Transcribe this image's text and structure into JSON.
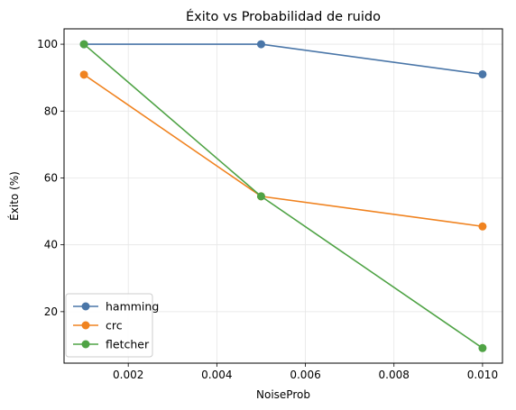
{
  "chart_data": {
    "type": "line",
    "title": "Éxito vs Probabilidad de ruido",
    "xlabel": "NoiseProb",
    "ylabel": "Éxito (%)",
    "x": [
      0.001,
      0.005,
      0.01
    ],
    "xlim": [
      0.00055,
      0.01045
    ],
    "ylim": [
      4.6,
      104.6
    ],
    "xticks": [
      0.002,
      0.004,
      0.006,
      0.008,
      0.01
    ],
    "xtick_labels": [
      "0.002",
      "0.004",
      "0.006",
      "0.008",
      "0.010"
    ],
    "yticks": [
      20,
      40,
      60,
      80,
      100
    ],
    "ytick_labels": [
      "20",
      "40",
      "60",
      "80",
      "100"
    ],
    "grid": true,
    "legend_position": "lower-left",
    "series": [
      {
        "name": "hamming",
        "color": "#4a76a8",
        "values": [
          100,
          100,
          91
        ]
      },
      {
        "name": "crc",
        "color": "#f08320",
        "values": [
          90.9,
          54.5,
          45.5
        ]
      },
      {
        "name": "fletcher",
        "color": "#4fa345",
        "values": [
          100,
          54.5,
          9.1
        ]
      }
    ]
  }
}
